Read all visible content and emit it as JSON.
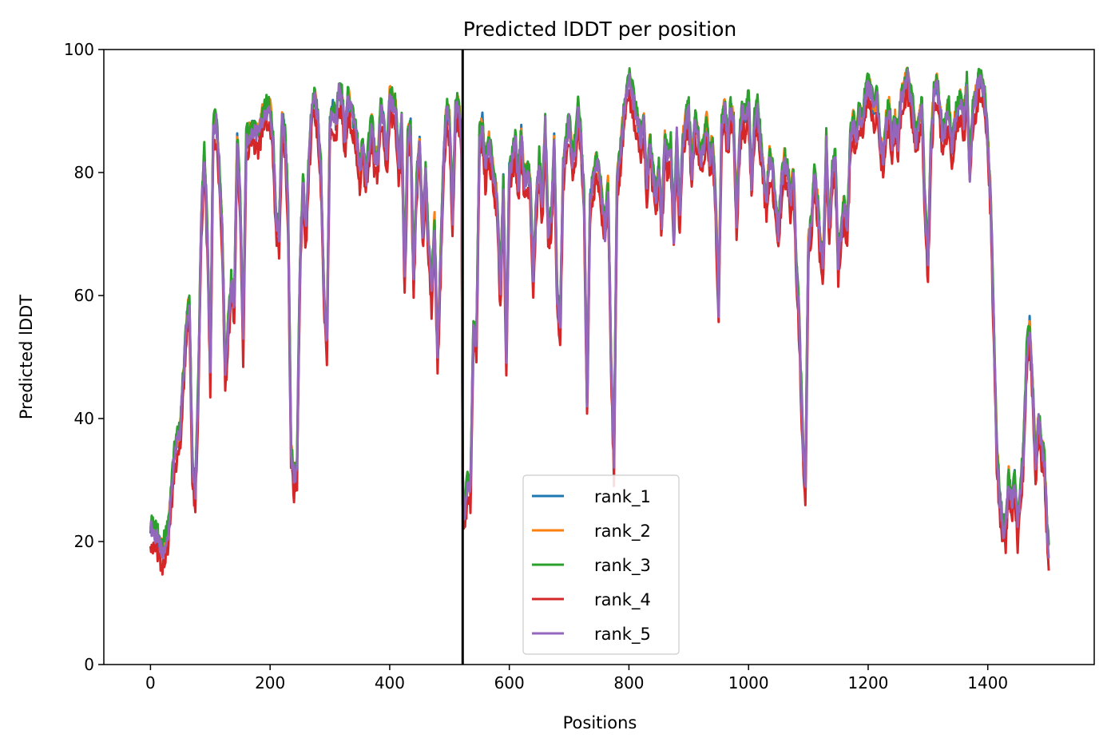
{
  "chart_data": {
    "type": "line",
    "title": "Predicted lDDT per position",
    "xlabel": "Positions",
    "ylabel": "Predicted lDDT",
    "xlim": [
      -78,
      1578
    ],
    "ylim": [
      0,
      100
    ],
    "xticks": [
      0,
      200,
      400,
      600,
      800,
      1000,
      1200,
      1400
    ],
    "yticks": [
      0,
      20,
      40,
      60,
      80,
      100
    ],
    "grid": false,
    "legend_position": "lower-center",
    "vline": {
      "x": 522,
      "color": "#000000"
    },
    "base": [
      [
        0,
        22
      ],
      [
        10,
        21
      ],
      [
        20,
        18
      ],
      [
        30,
        22
      ],
      [
        40,
        34
      ],
      [
        50,
        38
      ],
      [
        60,
        55
      ],
      [
        65,
        59
      ],
      [
        70,
        32
      ],
      [
        75,
        28
      ],
      [
        80,
        45
      ],
      [
        85,
        72
      ],
      [
        90,
        83
      ],
      [
        95,
        70
      ],
      [
        100,
        47
      ],
      [
        105,
        87
      ],
      [
        110,
        88
      ],
      [
        115,
        80
      ],
      [
        120,
        70
      ],
      [
        125,
        46
      ],
      [
        130,
        55
      ],
      [
        135,
        62
      ],
      [
        140,
        58
      ],
      [
        145,
        85
      ],
      [
        150,
        75
      ],
      [
        155,
        52
      ],
      [
        160,
        85
      ],
      [
        170,
        87
      ],
      [
        180,
        86
      ],
      [
        190,
        90
      ],
      [
        200,
        90
      ],
      [
        205,
        85
      ],
      [
        210,
        72
      ],
      [
        215,
        70
      ],
      [
        220,
        88
      ],
      [
        225,
        86
      ],
      [
        230,
        74
      ],
      [
        235,
        35
      ],
      [
        240,
        30
      ],
      [
        245,
        32
      ],
      [
        250,
        65
      ],
      [
        255,
        78
      ],
      [
        260,
        70
      ],
      [
        265,
        82
      ],
      [
        270,
        90
      ],
      [
        275,
        92
      ],
      [
        280,
        88
      ],
      [
        285,
        80
      ],
      [
        290,
        60
      ],
      [
        295,
        52
      ],
      [
        300,
        88
      ],
      [
        305,
        90
      ],
      [
        310,
        88
      ],
      [
        315,
        93
      ],
      [
        320,
        92
      ],
      [
        325,
        85
      ],
      [
        330,
        92
      ],
      [
        335,
        90
      ],
      [
        340,
        88
      ],
      [
        345,
        85
      ],
      [
        350,
        80
      ],
      [
        355,
        85
      ],
      [
        360,
        78
      ],
      [
        365,
        84
      ],
      [
        370,
        88
      ],
      [
        375,
        82
      ],
      [
        380,
        82
      ],
      [
        385,
        90
      ],
      [
        390,
        88
      ],
      [
        395,
        82
      ],
      [
        400,
        92
      ],
      [
        410,
        90
      ],
      [
        415,
        80
      ],
      [
        420,
        88
      ],
      [
        425,
        62
      ],
      [
        430,
        85
      ],
      [
        435,
        87
      ],
      [
        440,
        62
      ],
      [
        445,
        78
      ],
      [
        450,
        85
      ],
      [
        455,
        70
      ],
      [
        460,
        80
      ],
      [
        465,
        68
      ],
      [
        470,
        60
      ],
      [
        475,
        72
      ],
      [
        480,
        50
      ],
      [
        485,
        65
      ],
      [
        490,
        82
      ],
      [
        495,
        90
      ],
      [
        500,
        88
      ],
      [
        505,
        72
      ],
      [
        510,
        90
      ],
      [
        515,
        91
      ],
      [
        520,
        85
      ],
      [
        522,
        30
      ],
      [
        525,
        24
      ],
      [
        530,
        30
      ],
      [
        535,
        28
      ],
      [
        540,
        55
      ],
      [
        545,
        52
      ],
      [
        550,
        85
      ],
      [
        555,
        88
      ],
      [
        560,
        80
      ],
      [
        565,
        85
      ],
      [
        570,
        82
      ],
      [
        575,
        78
      ],
      [
        580,
        75
      ],
      [
        585,
        60
      ],
      [
        590,
        78
      ],
      [
        595,
        50
      ],
      [
        600,
        80
      ],
      [
        605,
        82
      ],
      [
        610,
        85
      ],
      [
        615,
        78
      ],
      [
        620,
        86
      ],
      [
        625,
        78
      ],
      [
        630,
        80
      ],
      [
        635,
        78
      ],
      [
        640,
        62
      ],
      [
        645,
        75
      ],
      [
        650,
        82
      ],
      [
        655,
        74
      ],
      [
        660,
        88
      ],
      [
        665,
        70
      ],
      [
        670,
        72
      ],
      [
        675,
        85
      ],
      [
        680,
        60
      ],
      [
        685,
        55
      ],
      [
        690,
        80
      ],
      [
        695,
        85
      ],
      [
        700,
        88
      ],
      [
        705,
        82
      ],
      [
        710,
        84
      ],
      [
        715,
        90
      ],
      [
        720,
        85
      ],
      [
        725,
        75
      ],
      [
        730,
        42
      ],
      [
        735,
        75
      ],
      [
        740,
        78
      ],
      [
        745,
        82
      ],
      [
        750,
        80
      ],
      [
        755,
        75
      ],
      [
        760,
        70
      ],
      [
        765,
        78
      ],
      [
        770,
        50
      ],
      [
        775,
        33
      ],
      [
        780,
        78
      ],
      [
        785,
        82
      ],
      [
        790,
        88
      ],
      [
        795,
        92
      ],
      [
        800,
        95
      ],
      [
        805,
        93
      ],
      [
        810,
        90
      ],
      [
        815,
        88
      ],
      [
        820,
        85
      ],
      [
        825,
        88
      ],
      [
        830,
        78
      ],
      [
        835,
        85
      ],
      [
        840,
        80
      ],
      [
        845,
        76
      ],
      [
        850,
        80
      ],
      [
        855,
        72
      ],
      [
        860,
        85
      ],
      [
        865,
        82
      ],
      [
        870,
        84
      ],
      [
        875,
        70
      ],
      [
        880,
        86
      ],
      [
        885,
        72
      ],
      [
        890,
        85
      ],
      [
        895,
        88
      ],
      [
        900,
        90
      ],
      [
        905,
        80
      ],
      [
        910,
        88
      ],
      [
        915,
        86
      ],
      [
        920,
        82
      ],
      [
        925,
        84
      ],
      [
        930,
        88
      ],
      [
        935,
        82
      ],
      [
        940,
        85
      ],
      [
        945,
        75
      ],
      [
        950,
        58
      ],
      [
        955,
        88
      ],
      [
        960,
        90
      ],
      [
        965,
        85
      ],
      [
        970,
        90
      ],
      [
        975,
        88
      ],
      [
        980,
        72
      ],
      [
        985,
        85
      ],
      [
        990,
        90
      ],
      [
        995,
        88
      ],
      [
        1000,
        92
      ],
      [
        1005,
        78
      ],
      [
        1010,
        88
      ],
      [
        1015,
        90
      ],
      [
        1020,
        85
      ],
      [
        1025,
        80
      ],
      [
        1030,
        75
      ],
      [
        1035,
        82
      ],
      [
        1040,
        80
      ],
      [
        1045,
        75
      ],
      [
        1050,
        70
      ],
      [
        1055,
        78
      ],
      [
        1060,
        82
      ],
      [
        1065,
        80
      ],
      [
        1070,
        75
      ],
      [
        1075,
        80
      ],
      [
        1080,
        65
      ],
      [
        1085,
        55
      ],
      [
        1090,
        38
      ],
      [
        1095,
        28
      ],
      [
        1100,
        68
      ],
      [
        1105,
        72
      ],
      [
        1110,
        80
      ],
      [
        1115,
        75
      ],
      [
        1120,
        68
      ],
      [
        1125,
        65
      ],
      [
        1130,
        85
      ],
      [
        1135,
        70
      ],
      [
        1140,
        80
      ],
      [
        1145,
        82
      ],
      [
        1150,
        65
      ],
      [
        1155,
        70
      ],
      [
        1160,
        75
      ],
      [
        1165,
        70
      ],
      [
        1170,
        85
      ],
      [
        1175,
        88
      ],
      [
        1180,
        85
      ],
      [
        1185,
        90
      ],
      [
        1190,
        88
      ],
      [
        1195,
        92
      ],
      [
        1200,
        94
      ],
      [
        1205,
        93
      ],
      [
        1210,
        90
      ],
      [
        1215,
        92
      ],
      [
        1220,
        85
      ],
      [
        1225,
        82
      ],
      [
        1230,
        88
      ],
      [
        1235,
        90
      ],
      [
        1240,
        85
      ],
      [
        1245,
        88
      ],
      [
        1250,
        85
      ],
      [
        1255,
        92
      ],
      [
        1260,
        93
      ],
      [
        1265,
        96
      ],
      [
        1270,
        93
      ],
      [
        1275,
        90
      ],
      [
        1280,
        85
      ],
      [
        1285,
        88
      ],
      [
        1290,
        90
      ],
      [
        1295,
        75
      ],
      [
        1300,
        65
      ],
      [
        1305,
        85
      ],
      [
        1310,
        92
      ],
      [
        1315,
        94
      ],
      [
        1320,
        90
      ],
      [
        1325,
        85
      ],
      [
        1330,
        88
      ],
      [
        1335,
        90
      ],
      [
        1340,
        84
      ],
      [
        1345,
        88
      ],
      [
        1350,
        90
      ],
      [
        1355,
        92
      ],
      [
        1360,
        88
      ],
      [
        1365,
        94
      ],
      [
        1370,
        80
      ],
      [
        1375,
        90
      ],
      [
        1380,
        92
      ],
      [
        1385,
        95
      ],
      [
        1390,
        94
      ],
      [
        1395,
        92
      ],
      [
        1400,
        85
      ],
      [
        1405,
        75
      ],
      [
        1410,
        55
      ],
      [
        1415,
        35
      ],
      [
        1420,
        27
      ],
      [
        1425,
        22
      ],
      [
        1430,
        22
      ],
      [
        1435,
        30
      ],
      [
        1440,
        26
      ],
      [
        1445,
        30
      ],
      [
        1450,
        22
      ],
      [
        1455,
        28
      ],
      [
        1460,
        35
      ],
      [
        1465,
        50
      ],
      [
        1470,
        55
      ],
      [
        1475,
        45
      ],
      [
        1480,
        32
      ],
      [
        1485,
        40
      ],
      [
        1490,
        35
      ],
      [
        1495,
        33
      ],
      [
        1500,
        20
      ],
      [
        1502,
        18
      ]
    ],
    "series": [
      {
        "name": "rank_1",
        "color": "#1f77b4",
        "offset": 0.3,
        "seed": 1
      },
      {
        "name": "rank_2",
        "color": "#ff7f0e",
        "offset": 0.8,
        "seed": 2
      },
      {
        "name": "rank_3",
        "color": "#2ca02c",
        "offset": 1.2,
        "seed": 3
      },
      {
        "name": "rank_4",
        "color": "#d62728",
        "offset": -2.5,
        "seed": 4
      },
      {
        "name": "rank_5",
        "color": "#9467bd",
        "offset": 0.0,
        "seed": 5
      }
    ]
  }
}
